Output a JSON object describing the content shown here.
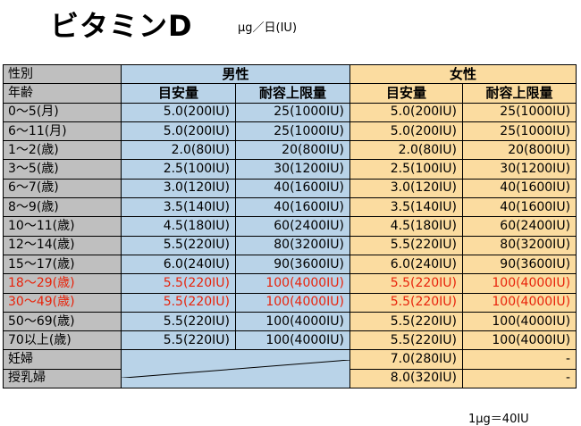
{
  "title": "ビタミンD",
  "unit": "μg／日(IU)",
  "footnote": "1μg＝40IU",
  "header": {
    "sex_label": "性別",
    "age_label": "年齢",
    "male": "男性",
    "female": "女性",
    "ai": "目安量",
    "ul": "耐容上限量"
  },
  "rows": [
    {
      "age": "0～5(月)",
      "m_ai": "5.0(200IU)",
      "m_ul": "25(1000IU)",
      "f_ai": "5.0(200IU)",
      "f_ul": "25(1000IU)"
    },
    {
      "age": "6～11(月)",
      "m_ai": "5.0(200IU)",
      "m_ul": "25(1000IU)",
      "f_ai": "5.0(200IU)",
      "f_ul": "25(1000IU)"
    },
    {
      "age": "1～2(歳)",
      "m_ai": "2.0(80IU)",
      "m_ul": "20(800IU)",
      "f_ai": "2.0(80IU)",
      "f_ul": "20(800IU)"
    },
    {
      "age": "3～5(歳)",
      "m_ai": "2.5(100IU)",
      "m_ul": "30(1200IU)",
      "f_ai": "2.5(100IU)",
      "f_ul": "30(1200IU)"
    },
    {
      "age": "6～7(歳)",
      "m_ai": "3.0(120IU)",
      "m_ul": "40(1600IU)",
      "f_ai": "3.0(120IU)",
      "f_ul": "40(1600IU)"
    },
    {
      "age": "8～9(歳)",
      "m_ai": "3.5(140IU)",
      "m_ul": "40(1600IU)",
      "f_ai": "3.5(140IU)",
      "f_ul": "40(1600IU)"
    },
    {
      "age": "10～11(歳)",
      "m_ai": "4.5(180IU)",
      "m_ul": "60(2400IU)",
      "f_ai": "4.5(180IU)",
      "f_ul": "60(2400IU)"
    },
    {
      "age": "12～14(歳)",
      "m_ai": "5.5(220IU)",
      "m_ul": "80(3200IU)",
      "f_ai": "5.5(220IU)",
      "f_ul": "80(3200IU)"
    },
    {
      "age": "15～17(歳)",
      "m_ai": "6.0(240IU)",
      "m_ul": "90(3600IU)",
      "f_ai": "6.0(240IU)",
      "f_ul": "90(3600IU)"
    },
    {
      "age": "18～29(歳)",
      "m_ai": "5.5(220IU)",
      "m_ul": "100(4000IU)",
      "f_ai": "5.5(220IU)",
      "f_ul": "100(4000IU)"
    },
    {
      "age": "30～49(歳)",
      "m_ai": "5.5(220IU)",
      "m_ul": "100(4000IU)",
      "f_ai": "5.5(220IU)",
      "f_ul": "100(4000IU)"
    },
    {
      "age": "50～69(歳)",
      "m_ai": "5.5(220IU)",
      "m_ul": "100(4000IU)",
      "f_ai": "5.5(220IU)",
      "f_ul": "100(4000IU)"
    },
    {
      "age": "70以上(歳)",
      "m_ai": "5.5(220IU)",
      "m_ul": "100(4000IU)",
      "f_ai": "5.5(220IU)",
      "f_ul": "100(4000IU)"
    }
  ],
  "extra_rows": [
    {
      "label": "妊婦",
      "f_ai": "7.0(280IU)",
      "f_ul": "-"
    },
    {
      "label": "授乳婦",
      "f_ai": "8.0(320IU)",
      "f_ul": "-"
    }
  ],
  "highlight_color": "#e8230b",
  "colors": {
    "male": "#b9d3e8",
    "female": "#fbdca0",
    "label": "#bfbfbf"
  }
}
